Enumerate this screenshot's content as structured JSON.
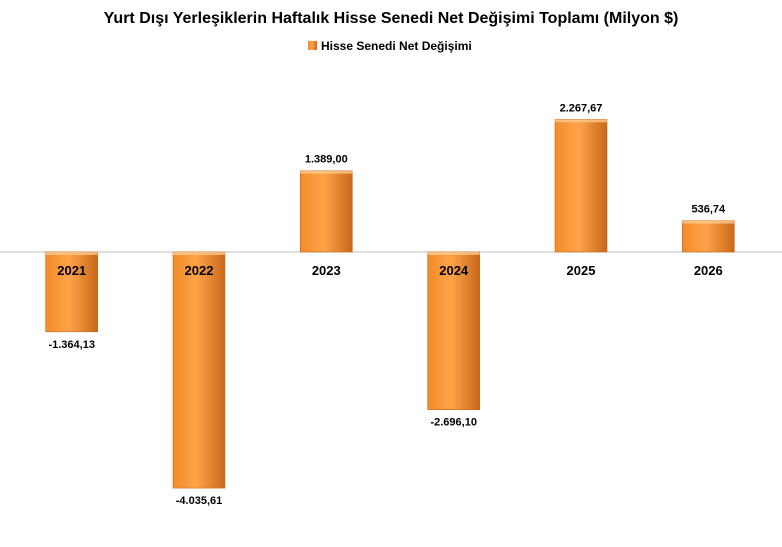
{
  "chart_data": {
    "type": "bar",
    "title": "Yurt Dışı Yerleşiklerin Haftalık Hisse Senedi Net Değişimi Toplamı (Milyon $)",
    "legend": {
      "position": "top",
      "entries": [
        "Hisse Senedi Net Değişimi"
      ]
    },
    "categories": [
      "2021",
      "2022",
      "2023",
      "2024",
      "2025",
      "2026"
    ],
    "series": [
      {
        "name": "Hisse Senedi Net Değişimi",
        "values": [
          -1364.13,
          -4035.61,
          1389.0,
          -2696.1,
          2267.67,
          536.74
        ],
        "value_labels": [
          "-1.364,13",
          "-4.035,61",
          "1.389,00",
          "-2.696,10",
          "2.267,67",
          "536,74"
        ]
      }
    ],
    "grid": false,
    "colors": {
      "bar_light": "#FDA34A",
      "bar_mid": "#F28C28",
      "bar_dark": "#C9681A",
      "axis": "#BFBFBF"
    }
  }
}
